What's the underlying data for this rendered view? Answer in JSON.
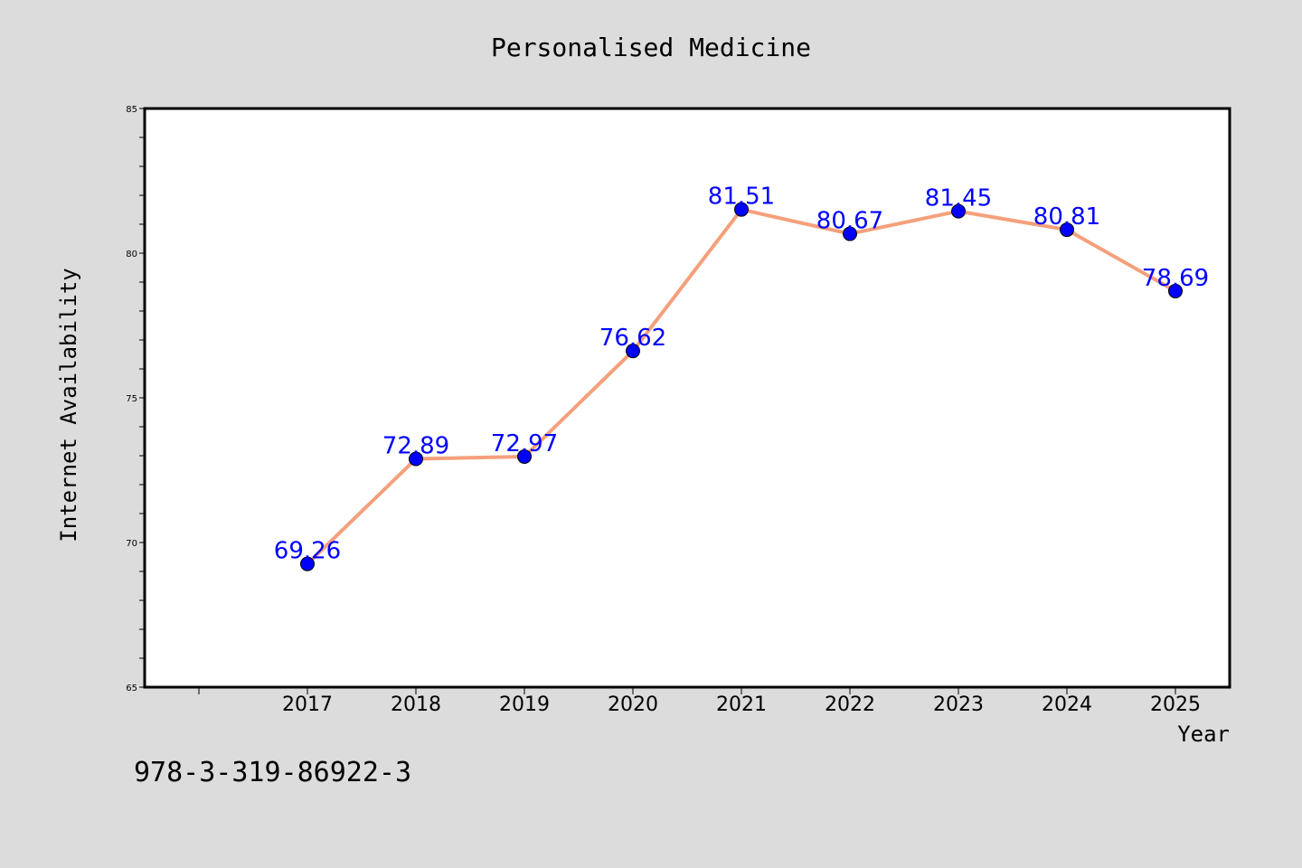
{
  "footnote": "978-3-319-86922-3",
  "colors": {
    "background": "#dcdcdc",
    "plot_background": "#ffffff",
    "line": "#f4a07c",
    "marker": "#0000ff",
    "data_label": "#0000ff"
  },
  "chart_data": {
    "type": "line",
    "title": "Personalised Medicine",
    "xlabel": "Year",
    "ylabel": "Internet Availability",
    "x": [
      2017,
      2018,
      2019,
      2020,
      2021,
      2022,
      2023,
      2024,
      2025
    ],
    "x_tick_labels": [
      "2017",
      "2018",
      "2019",
      "2020",
      "2021",
      "2022",
      "2023",
      "2024",
      "2025"
    ],
    "series": [
      {
        "values": [
          69.26,
          72.89,
          72.97,
          76.62,
          81.51,
          80.67,
          81.45,
          80.81,
          78.69
        ]
      }
    ],
    "data_labels": [
      "69.26",
      "72.89",
      "72.97",
      "76.62",
      "81.51",
      "80.67",
      "81.45",
      "80.81",
      "78.69"
    ],
    "ylim": [
      65,
      85
    ],
    "y_ticks": [
      65,
      70,
      75,
      80,
      85
    ],
    "y_tick_labels": [
      "65",
      "70",
      "75",
      "80",
      "85"
    ],
    "xlim": [
      2015.5,
      2025.5
    ],
    "grid": false,
    "legend": "none"
  }
}
